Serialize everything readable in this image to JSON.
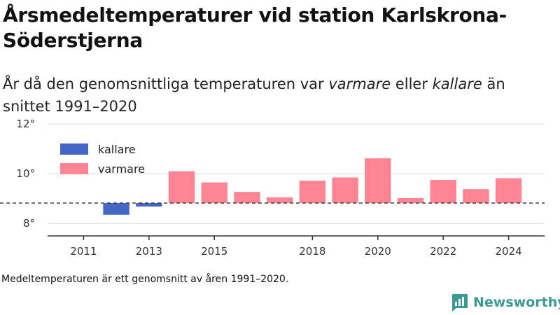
{
  "title": "Årsmedeltemperaturer vid station Karlskrona-Söderstjerna",
  "subtitle": {
    "part1": "År då den genomsnittliga temperaturen var ",
    "warm_word": "varmare",
    "part2": " eller ",
    "cold_word": "kallare",
    "part3": " än snittet 1991–2020"
  },
  "footnote": "Medeltemperaturen är ett genomsnitt av åren 1991–2020.",
  "brand": {
    "name": "Newsworthy",
    "icon": "bar-chart-logo-icon",
    "color": "#3a9b93"
  },
  "chart_data": {
    "type": "bar",
    "baseline": 8.82,
    "ylim": [
      7.5,
      12.2
    ],
    "yticks": [
      8,
      10,
      12
    ],
    "ytick_labels": [
      "8°",
      "10°",
      "12°"
    ],
    "x": [
      2011,
      2012,
      2013,
      2014,
      2015,
      2016,
      2017,
      2018,
      2019,
      2020,
      2021,
      2022,
      2023,
      2024
    ],
    "xtick_values": [
      2011,
      2013,
      2015,
      2018,
      2020,
      2022,
      2024
    ],
    "xtick_labels": [
      "2011",
      "2013",
      "2015",
      "2018",
      "2020",
      "2022",
      "2024"
    ],
    "values": [
      8.82,
      8.35,
      8.68,
      10.1,
      9.65,
      9.27,
      9.05,
      9.72,
      9.85,
      10.62,
      9.02,
      9.75,
      9.38,
      9.82
    ],
    "legend": [
      {
        "key": "colder",
        "label": "kallare",
        "color": "#4466c4"
      },
      {
        "key": "warmer",
        "label": "varmare",
        "color": "#ff8595"
      }
    ],
    "legend_position": "top-left",
    "grid": true
  }
}
